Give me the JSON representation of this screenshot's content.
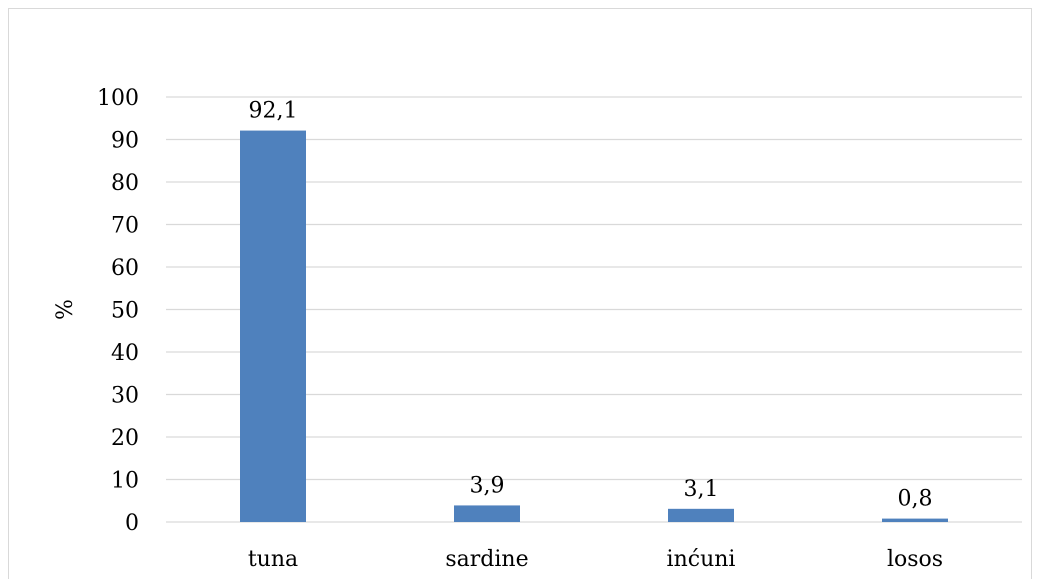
{
  "chart_data": {
    "type": "bar",
    "title": "",
    "xlabel": "",
    "ylabel": "%",
    "categories": [
      "tuna",
      "sardine",
      "inćuni",
      "losos"
    ],
    "values": [
      92.1,
      3.9,
      3.1,
      0.8
    ],
    "value_labels": [
      "92,1",
      "3,9",
      "3,1",
      "0,8"
    ],
    "ylim": [
      0,
      100
    ],
    "yticks": [
      0,
      10,
      20,
      30,
      40,
      50,
      60,
      70,
      80,
      90,
      100
    ],
    "grid": true,
    "legend": "none",
    "colors": {
      "bar": "#4f81bd",
      "grid": "#d9d9d9",
      "axis": "#d9d9d9"
    }
  }
}
